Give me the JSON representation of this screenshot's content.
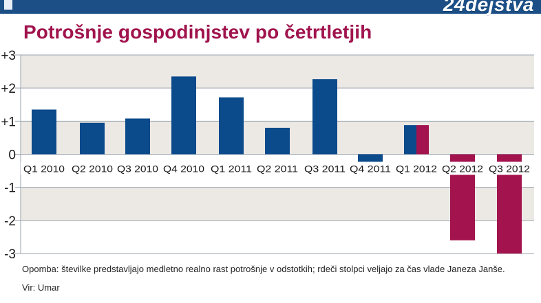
{
  "header": {
    "brand": "24dejstva"
  },
  "colors": {
    "brand_bar": "#1b4f86",
    "title": "#a0134d",
    "bar_blue": "#0b4a8b",
    "bar_red": "#a3134e",
    "band": "#ece9e5",
    "gridline": "#9aa3ad"
  },
  "chart_data": {
    "type": "bar",
    "title": "Potrošnje gospodinjstev po četrtletjih",
    "ylim": [
      -3,
      3
    ],
    "y_ticks": [
      "+3",
      "+2",
      "+1",
      "0",
      "-1",
      "-2",
      "-3"
    ],
    "y_tick_values": [
      3,
      2,
      1,
      0,
      -1,
      -2,
      -3
    ],
    "grid": true,
    "categories": [
      "Q1 2010",
      "Q2 2010",
      "Q3 2010",
      "Q4 2010",
      "Q1 2011",
      "Q2 2011",
      "Q3 2011",
      "Q4 2011",
      "Q1 2012",
      "Q2 2012",
      "Q3 2012"
    ],
    "values": [
      1.35,
      0.95,
      1.08,
      2.35,
      1.72,
      0.8,
      2.27,
      -0.42,
      0.88,
      -2.6,
      -3.0
    ],
    "bar_colors": [
      [
        "blue"
      ],
      [
        "blue"
      ],
      [
        "blue"
      ],
      [
        "blue"
      ],
      [
        "blue"
      ],
      [
        "blue"
      ],
      [
        "blue"
      ],
      [
        "blue"
      ],
      [
        "blue",
        "red"
      ],
      [
        "red"
      ],
      [
        "red"
      ]
    ]
  },
  "footnote": "Opomba: številke predstavljajo medletno realno rast potrošnje v odstotkih; rdeči stolpci veljajo za čas vlade Janeza Janše.",
  "source": "Vir: Umar"
}
